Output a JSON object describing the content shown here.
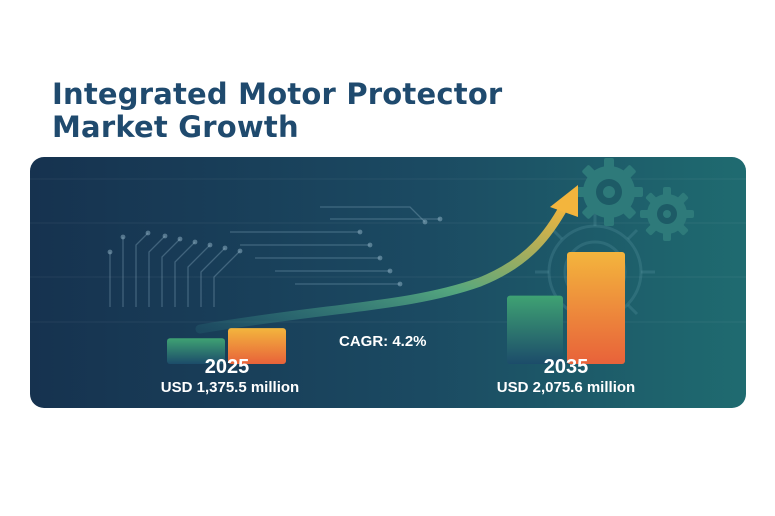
{
  "title_line1": "Integrated Motor Protector",
  "title_line2": "Market Growth",
  "cagr_label": "CAGR: 4.2%",
  "colors": {
    "title": "#1f4a6e",
    "panel_left": "#16324f",
    "panel_right": "#1f6b70",
    "bar_green_top": "#3fa273",
    "bar_green_bottom": "#1c4c6a",
    "bar_orange_top": "#f3b53d",
    "bar_orange_bottom": "#e8623a",
    "arrow": "#f3b53d"
  },
  "icons": [
    "gear-icon",
    "growth-arrow-icon",
    "circuit-lines"
  ],
  "chart_data": {
    "type": "bar",
    "categories": [
      "2025",
      "2035"
    ],
    "values": [
      1375.5,
      2075.6
    ],
    "value_labels": [
      "USD 1,375.5 million",
      "USD 2,075.6 million"
    ],
    "cagr": "CAGR: 4.2%",
    "title": "Integrated Motor Protector Market Growth",
    "xlabel": "",
    "ylabel": ""
  }
}
